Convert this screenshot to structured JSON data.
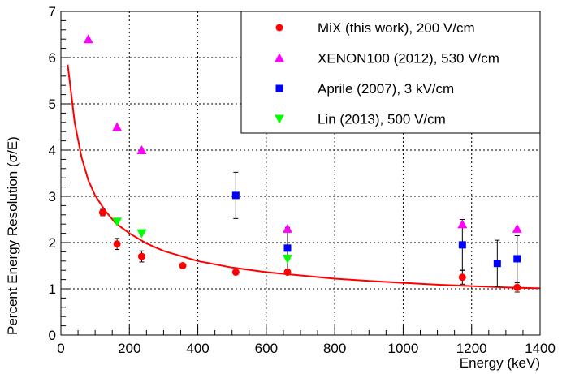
{
  "chart_data": {
    "type": "scatter",
    "title": "",
    "xlabel": "Energy (keV)",
    "ylabel": "Percent Energy Resolution (σ/E)",
    "xlim": [
      0,
      1400
    ],
    "ylim": [
      0,
      7
    ],
    "x_ticks": [
      "0",
      "200",
      "400",
      "600",
      "800",
      "1000",
      "1200",
      "1400"
    ],
    "y_ticks": [
      "0",
      "1",
      "2",
      "3",
      "4",
      "5",
      "6",
      "7"
    ],
    "grid": true,
    "legend_position": "top-right",
    "series": [
      {
        "name": "MiX (this work), 200 V/cm",
        "marker": "circle",
        "color": "#ff0000",
        "points": [
          {
            "x": 122,
            "y": 2.65,
            "err": 0.07
          },
          {
            "x": 164,
            "y": 1.97,
            "err": 0.12
          },
          {
            "x": 236,
            "y": 1.7,
            "err": 0.12
          },
          {
            "x": 356,
            "y": 1.5,
            "err": 0
          },
          {
            "x": 511,
            "y": 1.36,
            "err": 0
          },
          {
            "x": 662,
            "y": 1.36,
            "err": 0
          },
          {
            "x": 1173,
            "y": 1.25,
            "err": 0.15
          },
          {
            "x": 1333,
            "y": 1.03,
            "err": 0.1
          }
        ]
      },
      {
        "name": "XENON100 (2012), 530 V/cm",
        "marker": "triangle-up",
        "color": "#ff00ff",
        "points": [
          {
            "x": 80,
            "y": 6.4
          },
          {
            "x": 164,
            "y": 4.5
          },
          {
            "x": 236,
            "y": 4.0
          },
          {
            "x": 662,
            "y": 2.3
          },
          {
            "x": 1173,
            "y": 2.4
          },
          {
            "x": 1333,
            "y": 2.3
          }
        ]
      },
      {
        "name": "Aprile (2007), 3 kV/cm",
        "marker": "square",
        "color": "#0000ff",
        "points": [
          {
            "x": 511,
            "y": 3.02,
            "err": 0.5
          },
          {
            "x": 662,
            "y": 1.88,
            "err": 0.45
          },
          {
            "x": 1173,
            "y": 1.95,
            "err": 0.55
          },
          {
            "x": 1275,
            "y": 1.55,
            "err": 0.5
          },
          {
            "x": 1333,
            "y": 1.65,
            "err": 0.5
          }
        ]
      },
      {
        "name": "Lin (2013), 500 V/cm",
        "marker": "triangle-down",
        "color": "#00ff00",
        "points": [
          {
            "x": 164,
            "y": 2.45
          },
          {
            "x": 236,
            "y": 2.2
          },
          {
            "x": 662,
            "y": 1.65
          }
        ]
      }
    ],
    "fit_curve": {
      "color": "#ff0000",
      "xmin": 20,
      "xmax": 1400,
      "points": [
        {
          "x": 20,
          "y": 5.85
        },
        {
          "x": 40,
          "y": 4.6
        },
        {
          "x": 60,
          "y": 3.85
        },
        {
          "x": 80,
          "y": 3.35
        },
        {
          "x": 100,
          "y": 3.02
        },
        {
          "x": 130,
          "y": 2.68
        },
        {
          "x": 160,
          "y": 2.42
        },
        {
          "x": 200,
          "y": 2.2
        },
        {
          "x": 250,
          "y": 1.98
        },
        {
          "x": 300,
          "y": 1.82
        },
        {
          "x": 400,
          "y": 1.6
        },
        {
          "x": 500,
          "y": 1.46
        },
        {
          "x": 600,
          "y": 1.36
        },
        {
          "x": 700,
          "y": 1.29
        },
        {
          "x": 800,
          "y": 1.22
        },
        {
          "x": 900,
          "y": 1.17
        },
        {
          "x": 1000,
          "y": 1.13
        },
        {
          "x": 1100,
          "y": 1.09
        },
        {
          "x": 1200,
          "y": 1.06
        },
        {
          "x": 1300,
          "y": 1.03
        },
        {
          "x": 1400,
          "y": 1.01
        }
      ]
    }
  }
}
